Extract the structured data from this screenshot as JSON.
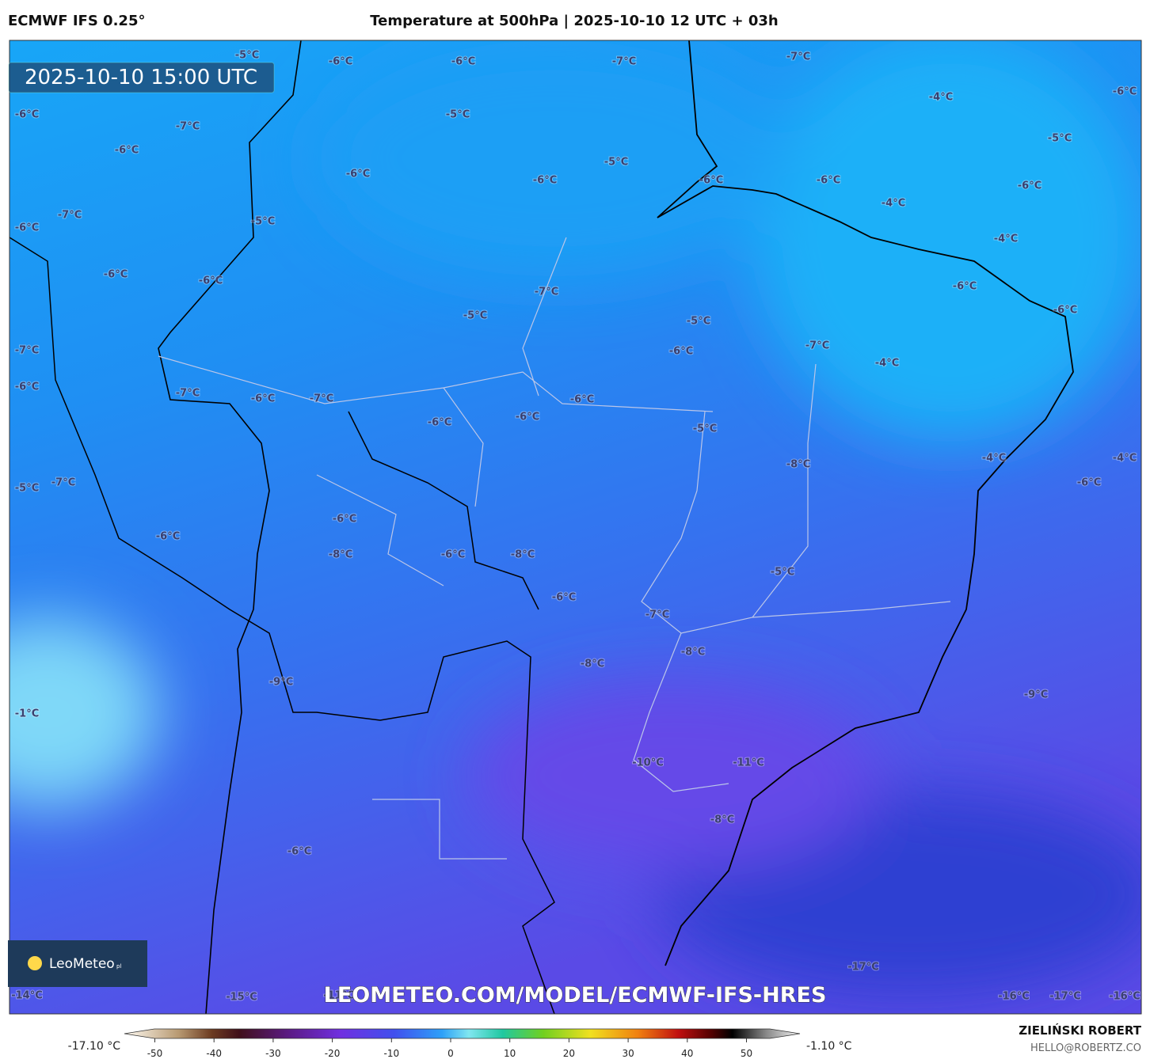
{
  "header": {
    "model": "ECMWF IFS 0.25°",
    "title": "Temperature at 500hPa | 2025-10-10 12 UTC + 03h"
  },
  "timestamp": "2025-10-10 15:00 UTC",
  "url": "LEOMETEO.COM/MODEL/ECMWF-IFS-HRES",
  "logo": {
    "name": "LeoMeteo",
    "suffix": "pl"
  },
  "map_labels": [
    "-5°C",
    "-6°C",
    "-6°C",
    "-7°C",
    "-7°C",
    "-4°C",
    "-6°C",
    "-6°C",
    "-7°C",
    "-5°C",
    "-6°C",
    "-5°C",
    "-5°C",
    "-6°C",
    "-6°C",
    "-6°C",
    "-6°C",
    "-6°C",
    "-7°C",
    "-6°C",
    "-5°C",
    "-4°C",
    "-4°C",
    "-6°C",
    "-6°C",
    "-7°C",
    "-6°C",
    "-6°C",
    "-5°C",
    "-5°C",
    "-6°C",
    "-7°C",
    "-4°C",
    "-7°C",
    "-6°C",
    "-7°C",
    "-6°C",
    "-7°C",
    "-6°C",
    "-6°C",
    "-6°C",
    "-5°C",
    "-4°C",
    "-4°C",
    "-8°C",
    "-6°C",
    "-5°C",
    "-7°C",
    "-6°C",
    "-6°C",
    "-6°C",
    "-8°C",
    "-8°C",
    "-5°C",
    "-6°C",
    "-7°C",
    "-8°C",
    "-8°C",
    "-9°C",
    "-9°C",
    "-1°C",
    "-10°C",
    "-11°C",
    "-8°C",
    "-6°C",
    "-17°C",
    "-14°C",
    "-15°C",
    "-11°C",
    "-16°C",
    "-17°C",
    "-16°C"
  ],
  "colorbar": {
    "min_label": "-17.10 °C",
    "max_label": "-1.10 °C",
    "ticks": [
      -50,
      -40,
      -30,
      -20,
      -10,
      0,
      10,
      20,
      30,
      40,
      50
    ]
  },
  "footer": {
    "author": "ZIELIŃSKI ROBERT",
    "email": "HELLO@ROBERTZ.CO"
  }
}
